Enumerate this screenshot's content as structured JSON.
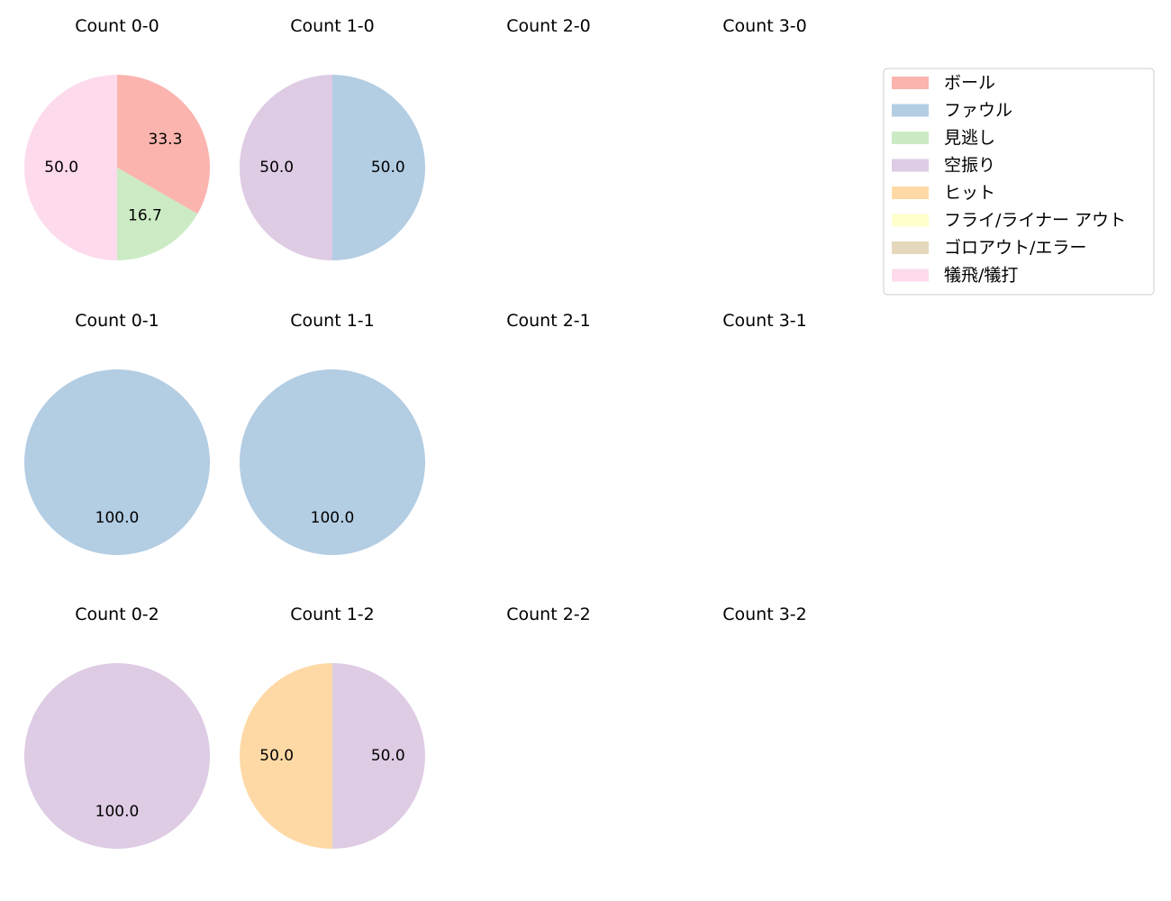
{
  "chart_data": {
    "type": "pie",
    "legend": {
      "placement": "top-right",
      "entries": [
        {
          "key": "ball",
          "label": "ボール",
          "color": "#fbb4ae"
        },
        {
          "key": "foul",
          "label": "ファウル",
          "color": "#b3cde3"
        },
        {
          "key": "looking",
          "label": "見逃し",
          "color": "#ccebc5"
        },
        {
          "key": "swinging",
          "label": "空振り",
          "color": "#decbe4"
        },
        {
          "key": "hit",
          "label": "ヒット",
          "color": "#fed9a6"
        },
        {
          "key": "flyout",
          "label": "フライ/ライナー アウト",
          "color": "#ffffcc"
        },
        {
          "key": "groundout",
          "label": "ゴロアウト/エラー",
          "color": "#e5d8bd"
        },
        {
          "key": "sacrifice",
          "label": "犠飛/犠打",
          "color": "#fddaec"
        }
      ]
    },
    "panels": [
      {
        "title": "Count 0-0",
        "slices": [
          {
            "key": "ball",
            "value": 33.3,
            "label": "33.3"
          },
          {
            "key": "looking",
            "value": 16.7,
            "label": "16.7"
          },
          {
            "key": "sacrifice",
            "value": 50.0,
            "label": "50.0"
          }
        ]
      },
      {
        "title": "Count 1-0",
        "slices": [
          {
            "key": "foul",
            "value": 50.0,
            "label": "50.0"
          },
          {
            "key": "swinging",
            "value": 50.0,
            "label": "50.0"
          }
        ]
      },
      {
        "title": "Count 2-0",
        "slices": []
      },
      {
        "title": "Count 3-0",
        "slices": []
      },
      {
        "title": "Count 0-1",
        "slices": [
          {
            "key": "foul",
            "value": 100.0,
            "label": "100.0"
          }
        ]
      },
      {
        "title": "Count 1-1",
        "slices": [
          {
            "key": "foul",
            "value": 100.0,
            "label": "100.0"
          }
        ]
      },
      {
        "title": "Count 2-1",
        "slices": []
      },
      {
        "title": "Count 3-1",
        "slices": []
      },
      {
        "title": "Count 0-2",
        "slices": [
          {
            "key": "swinging",
            "value": 100.0,
            "label": "100.0"
          }
        ]
      },
      {
        "title": "Count 1-2",
        "slices": [
          {
            "key": "swinging",
            "value": 50.0,
            "label": "50.0"
          },
          {
            "key": "hit",
            "value": 50.0,
            "label": "50.0"
          }
        ]
      },
      {
        "title": "Count 2-2",
        "slices": []
      },
      {
        "title": "Count 3-2",
        "slices": []
      }
    ]
  }
}
